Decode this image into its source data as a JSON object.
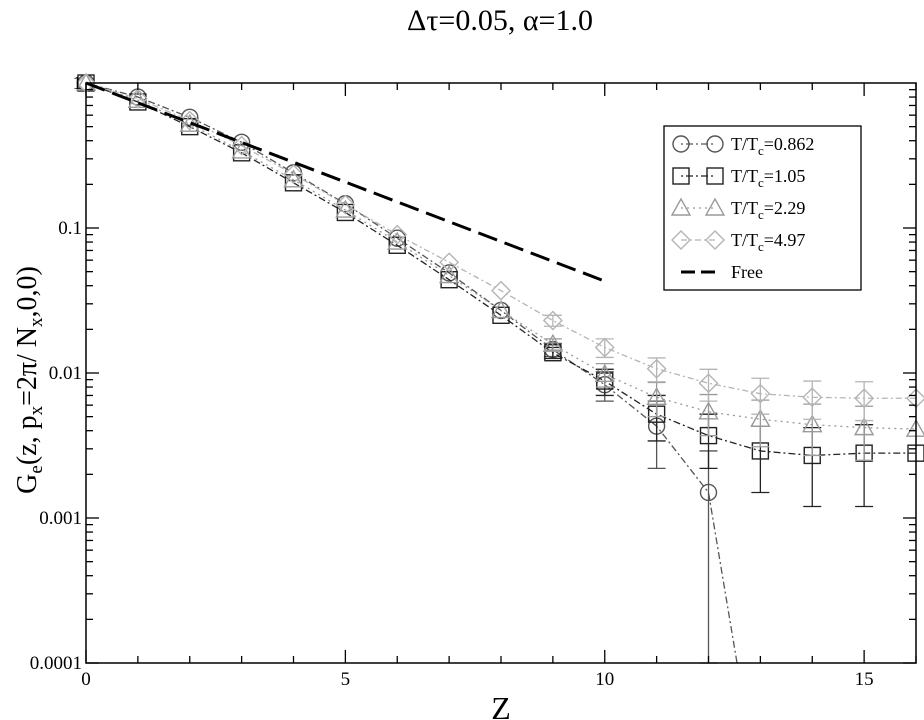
{
  "chart_data": {
    "type": "scatter",
    "title": "Δτ=0.05, α=1.0",
    "xlabel": "Z",
    "ylabel": {
      "parts": [
        "G",
        "e",
        "(z, p",
        "x",
        "=2π/ N",
        "x",
        ",0,0)"
      ]
    },
    "xlim": [
      0,
      16
    ],
    "ylim": [
      0.0001,
      1
    ],
    "yscale": "log",
    "x_ticks": [
      0,
      5,
      10,
      15
    ],
    "y_ticks": [
      {
        "value": 0.0001,
        "label": "0.0001"
      },
      {
        "value": 0.001,
        "label": "0.001"
      },
      {
        "value": 0.01,
        "label": "0.01"
      },
      {
        "value": 0.1,
        "label": "0.1"
      },
      {
        "value": 1,
        "label": "1"
      }
    ],
    "grid": false,
    "legend_position": "top-right",
    "series": [
      {
        "label_parts": [
          "T/T",
          "c",
          "=0.862"
        ],
        "marker": "circle",
        "color": "#555555",
        "dash": "2,3,7,3",
        "x": [
          0,
          1,
          2,
          3,
          4,
          5,
          6,
          7,
          8,
          9,
          10,
          11,
          12,
          12.55
        ],
        "y": [
          1.0,
          0.8,
          0.58,
          0.39,
          0.24,
          0.147,
          0.085,
          0.049,
          0.027,
          0.0145,
          0.0083,
          0.0043,
          0.0015,
          0.0001
        ],
        "err": [
          0,
          0,
          0,
          0,
          0,
          0,
          0,
          0,
          0,
          0.0015,
          0.0019,
          0.0021,
          0.0014,
          0
        ],
        "marker_mask": [
          true,
          true,
          true,
          true,
          true,
          true,
          true,
          true,
          true,
          true,
          true,
          true,
          true,
          false
        ]
      },
      {
        "label_parts": [
          "T/T",
          "c",
          "=1.05"
        ],
        "marker": "square",
        "color": "#222222",
        "dash": "2,3,7,3",
        "x": [
          0,
          1,
          2,
          3,
          4,
          5,
          6,
          7,
          8,
          9,
          10,
          11,
          12,
          13,
          14,
          15,
          16
        ],
        "y": [
          1.0,
          0.74,
          0.5,
          0.33,
          0.205,
          0.128,
          0.076,
          0.044,
          0.025,
          0.0138,
          0.0088,
          0.0052,
          0.0037,
          0.0029,
          0.0027,
          0.0028,
          0.0028
        ],
        "err": [
          0,
          0,
          0,
          0,
          0,
          0,
          0,
          0,
          0,
          0.0012,
          0.0018,
          0.0018,
          0.0015,
          0.0014,
          0.0015,
          0.0016,
          0
        ],
        "marker_mask": [
          true,
          true,
          true,
          true,
          true,
          true,
          true,
          true,
          true,
          true,
          true,
          true,
          true,
          true,
          true,
          true,
          true
        ]
      },
      {
        "label_parts": [
          "T/T",
          "c",
          "=2.29"
        ],
        "marker": "triangle",
        "color": "#9a9a9a",
        "dash": "2,4",
        "x": [
          0,
          1,
          2,
          3,
          4,
          5,
          6,
          7,
          8,
          9,
          10,
          11,
          12,
          13,
          14,
          15,
          16
        ],
        "y": [
          1.0,
          0.76,
          0.52,
          0.34,
          0.215,
          0.133,
          0.08,
          0.047,
          0.027,
          0.0158,
          0.0098,
          0.0068,
          0.0054,
          0.0048,
          0.0044,
          0.0042,
          0.0041
        ],
        "err": [
          0,
          0,
          0,
          0,
          0,
          0,
          0,
          0,
          0,
          0.0014,
          0.0018,
          0.0018,
          0.0017,
          0.0017,
          0.0017,
          0.0017,
          0
        ],
        "marker_mask": [
          true,
          true,
          true,
          true,
          true,
          true,
          true,
          true,
          true,
          true,
          true,
          true,
          true,
          true,
          true,
          true,
          true
        ]
      },
      {
        "label_parts": [
          "T/T",
          "c",
          "=4.97"
        ],
        "marker": "diamond",
        "color": "#b5b5b5",
        "dash": "6,3,2,3",
        "x": [
          0,
          1,
          2,
          3,
          4,
          5,
          6,
          7,
          8,
          9,
          10,
          11,
          12,
          13,
          14,
          15,
          16
        ],
        "y": [
          1.0,
          0.78,
          0.55,
          0.37,
          0.235,
          0.145,
          0.09,
          0.058,
          0.037,
          0.023,
          0.015,
          0.0107,
          0.0085,
          0.0072,
          0.0068,
          0.0067,
          0.0067
        ],
        "err": [
          0,
          0,
          0,
          0,
          0,
          0,
          0,
          0,
          0,
          0.002,
          0.0022,
          0.002,
          0.0021,
          0.002,
          0.002,
          0.002,
          0
        ],
        "marker_mask": [
          true,
          true,
          true,
          true,
          true,
          true,
          true,
          true,
          true,
          true,
          true,
          true,
          true,
          true,
          true,
          true,
          true
        ]
      },
      {
        "label_parts": [
          "Free",
          "",
          ""
        ],
        "marker": "none",
        "color": "#000000",
        "dash": "20,8",
        "x": [
          0,
          10
        ],
        "y": [
          1.0,
          0.043
        ],
        "err": [
          0,
          0
        ],
        "marker_mask": [
          false,
          false
        ]
      }
    ]
  }
}
